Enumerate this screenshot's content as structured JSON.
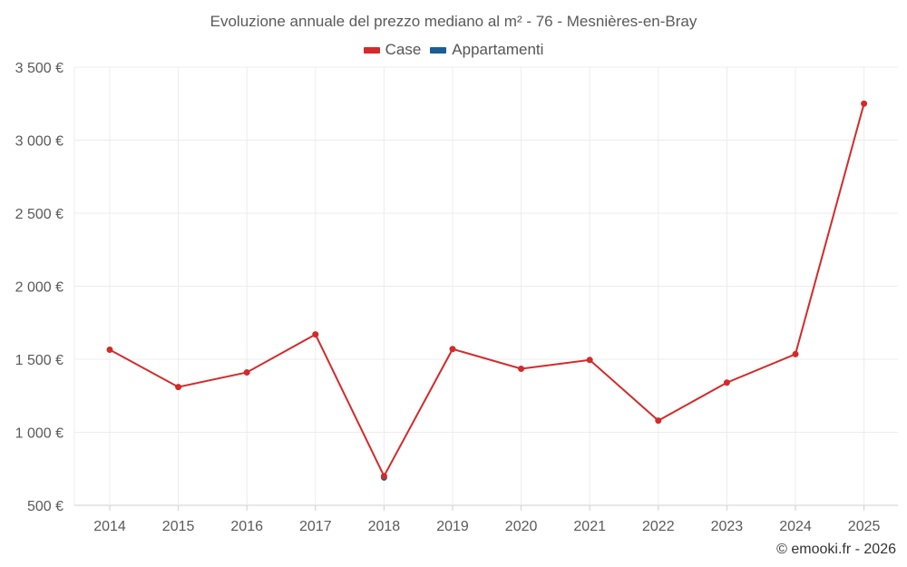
{
  "chart_data": {
    "type": "line",
    "title": "Evoluzione annuale del prezzo mediano al m² - 76 - Mesnières-en-Bray",
    "xlabel": "",
    "ylabel": "",
    "categories": [
      "2014",
      "2015",
      "2016",
      "2017",
      "2018",
      "2019",
      "2020",
      "2021",
      "2022",
      "2023",
      "2024",
      "2025"
    ],
    "ylim": [
      500,
      3500
    ],
    "y_ticks": [
      500,
      1000,
      1500,
      2000,
      2500,
      3000,
      3500
    ],
    "y_tick_labels": [
      "500 €",
      "1 000 €",
      "1 500 €",
      "2 000 €",
      "2 500 €",
      "3 000 €",
      "3 500 €"
    ],
    "grid": true,
    "legend_position": "top-center",
    "series": [
      {
        "name": "Case",
        "color": "#d42a2a",
        "values": [
          1565,
          1310,
          1410,
          1670,
          700,
          1570,
          1435,
          1495,
          1080,
          1340,
          1535,
          3250
        ]
      },
      {
        "name": "Appartamenti",
        "color": "#1c5c94",
        "values": [
          null,
          null,
          null,
          null,
          690,
          null,
          null,
          null,
          null,
          null,
          null,
          null
        ]
      }
    ]
  },
  "credit": "© emooki.fr - 2026"
}
